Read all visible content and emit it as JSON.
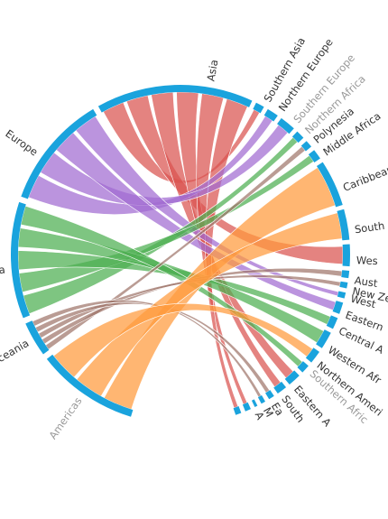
{
  "colors": {
    "arc": "#1aa3dd",
    "red": "#d9534f",
    "purple": "#a16bd1",
    "green": "#4caf50",
    "brown": "#a0766b",
    "orange": "#ff9a3c"
  },
  "chart_data": {
    "type": "chord",
    "groups": [
      {
        "id": "asia",
        "label": "Asia",
        "color": "red",
        "a0": 241,
        "a1": 295,
        "labelAngle": 280,
        "faint": false
      },
      {
        "id": "europe",
        "label": "Europe",
        "color": "purple",
        "a0": 200,
        "a1": 239,
        "labelAngle": 215,
        "faint": false
      },
      {
        "id": "africa",
        "label": "Africa",
        "color": "green",
        "a0": 158,
        "a1": 198,
        "labelAngle": 175,
        "faint": false
      },
      {
        "id": "oceania",
        "label": "Oceania",
        "color": "brown",
        "a0": 144,
        "a1": 156,
        "labelAngle": 150,
        "faint": false
      },
      {
        "id": "americas",
        "label": "Americas",
        "color": "orange",
        "a0": 107,
        "a1": 142,
        "labelAngle": 125,
        "faint": true
      },
      {
        "id": "s-asia",
        "label": "Southern Asia",
        "a0": 296.5,
        "a1": 299.5,
        "labelAngle": 299.5,
        "faint": false
      },
      {
        "id": "n-europe",
        "label": "Northern Europe",
        "a0": 301,
        "a1": 305,
        "labelAngle": 305,
        "faint": false
      },
      {
        "id": "s-europe",
        "label": "Southern Europe",
        "a0": 306.5,
        "a1": 312,
        "labelAngle": 311,
        "faint": true
      },
      {
        "id": "n-africa",
        "label": "Northern Africa",
        "a0": 313.5,
        "a1": 316.5,
        "labelAngle": 316,
        "faint": true
      },
      {
        "id": "polynesia",
        "label": "Polynesia",
        "a0": 318,
        "a1": 320.5,
        "labelAngle": 320,
        "faint": false
      },
      {
        "id": "mid-africa",
        "label": "Middle Africa",
        "a0": 322,
        "a1": 325.5,
        "labelAngle": 325,
        "faint": false
      },
      {
        "id": "caribbean",
        "label": "Caribbean",
        "a0": 327,
        "a1": 343,
        "labelAngle": 338,
        "faint": false
      },
      {
        "id": "south",
        "label": "South",
        "a0": 344.5,
        "a1": 355,
        "labelAngle": 352,
        "faint": false
      },
      {
        "id": "west",
        "label": "Wes",
        "a0": 356.5,
        "a1": 364,
        "labelAngle": 362,
        "faint": false
      },
      {
        "id": "australia",
        "label": "Aust",
        "a0": 365.5,
        "a1": 368,
        "labelAngle": 368.5,
        "faint": false
      },
      {
        "id": "nz",
        "label": "New Zeal",
        "a0": 369.5,
        "a1": 371.5,
        "labelAngle": 372,
        "faint": false
      },
      {
        "id": "west2",
        "label": "West",
        "a0": 373,
        "a1": 375,
        "labelAngle": 374.5,
        "faint": false
      },
      {
        "id": "eastern",
        "label": "Eastern",
        "a0": 376.5,
        "a1": 380.5,
        "labelAngle": 380,
        "faint": false
      },
      {
        "id": "central",
        "label": "Central A",
        "a0": 382,
        "a1": 386,
        "labelAngle": 385.5,
        "faint": false
      },
      {
        "id": "western-af",
        "label": "Western Afr",
        "a0": 387.5,
        "a1": 393.5,
        "labelAngle": 392.5,
        "faint": false
      },
      {
        "id": "n-america",
        "label": "Northern Ameri",
        "a0": 395,
        "a1": 399.5,
        "labelAngle": 398.5,
        "faint": false
      },
      {
        "id": "s-africa",
        "label": "Southern Afric",
        "a0": 401,
        "a1": 404,
        "labelAngle": 402,
        "faint": true
      },
      {
        "id": "e-asia",
        "label": "Eastern A",
        "a0": 405.5,
        "a1": 410,
        "labelAngle": 409,
        "faint": false
      },
      {
        "id": "south-b",
        "label": "South",
        "a0": 411.5,
        "a1": 415,
        "labelAngle": 414,
        "faint": false
      },
      {
        "id": "ea",
        "label": "Ea",
        "a0": 416.5,
        "a1": 418.5,
        "labelAngle": 418,
        "faint": false
      },
      {
        "id": "m",
        "label": "M",
        "a0": 420,
        "a1": 421.5,
        "labelAngle": 421,
        "faint": false
      },
      {
        "id": "a-small",
        "label": "A",
        "a0": 423,
        "a1": 424,
        "labelAngle": 424,
        "faint": false
      },
      {
        "id": "tiny1",
        "label": "",
        "a0": 425.5,
        "a1": 427.5,
        "labelAngle": 0,
        "faint": false
      },
      {
        "id": "tiny2",
        "label": "",
        "a0": 429,
        "a1": 431,
        "labelAngle": 0,
        "faint": false
      }
    ],
    "ribbons": [
      {
        "from": "asia",
        "to": "s-asia",
        "color": "red"
      },
      {
        "from": "asia",
        "to": "west",
        "color": "red"
      },
      {
        "from": "asia",
        "to": "e-asia",
        "color": "red"
      },
      {
        "from": "asia",
        "to": "south-b",
        "color": "red"
      },
      {
        "from": "asia",
        "to": "tiny1",
        "color": "red"
      },
      {
        "from": "asia",
        "to": "tiny2",
        "color": "red"
      },
      {
        "from": "europe",
        "to": "n-europe",
        "color": "purple"
      },
      {
        "from": "europe",
        "to": "s-europe",
        "color": "purple"
      },
      {
        "from": "europe",
        "to": "eastern",
        "color": "purple"
      },
      {
        "from": "europe",
        "to": "west2",
        "color": "purple"
      },
      {
        "from": "africa",
        "to": "n-africa",
        "color": "green"
      },
      {
        "from": "africa",
        "to": "mid-africa",
        "color": "green"
      },
      {
        "from": "africa",
        "to": "central",
        "color": "green"
      },
      {
        "from": "africa",
        "to": "western-af",
        "color": "green"
      },
      {
        "from": "africa",
        "to": "s-africa",
        "color": "green"
      },
      {
        "from": "oceania",
        "to": "polynesia",
        "color": "brown"
      },
      {
        "from": "oceania",
        "to": "australia",
        "color": "brown"
      },
      {
        "from": "oceania",
        "to": "nz",
        "color": "brown"
      },
      {
        "from": "oceania",
        "to": "ea",
        "color": "brown"
      },
      {
        "from": "oceania",
        "to": "m",
        "color": "brown"
      },
      {
        "from": "americas",
        "to": "caribbean",
        "color": "orange"
      },
      {
        "from": "americas",
        "to": "south",
        "color": "orange"
      },
      {
        "from": "americas",
        "to": "n-america",
        "color": "orange"
      }
    ]
  }
}
